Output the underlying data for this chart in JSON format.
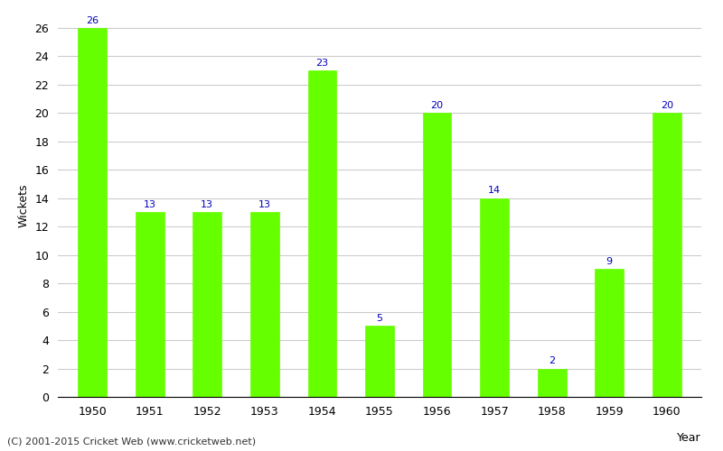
{
  "years": [
    "1950",
    "1951",
    "1952",
    "1953",
    "1954",
    "1955",
    "1956",
    "1957",
    "1958",
    "1959",
    "1960"
  ],
  "values": [
    26,
    13,
    13,
    13,
    23,
    5,
    20,
    14,
    2,
    9,
    20
  ],
  "bar_color": "#66ff00",
  "bar_edgecolor": "#66ff00",
  "label_color": "#0000bb",
  "ylabel": "Wickets",
  "xlabel": "Year",
  "ylim": [
    0,
    27
  ],
  "yticks": [
    0,
    2,
    4,
    6,
    8,
    10,
    12,
    14,
    16,
    18,
    20,
    22,
    24,
    26
  ],
  "background_color": "#ffffff",
  "grid_color": "#cccccc",
  "footer_text": "(C) 2001-2015 Cricket Web (www.cricketweb.net)",
  "label_fontsize": 8,
  "axis_fontsize": 9,
  "footer_fontsize": 8,
  "bar_width": 0.5
}
